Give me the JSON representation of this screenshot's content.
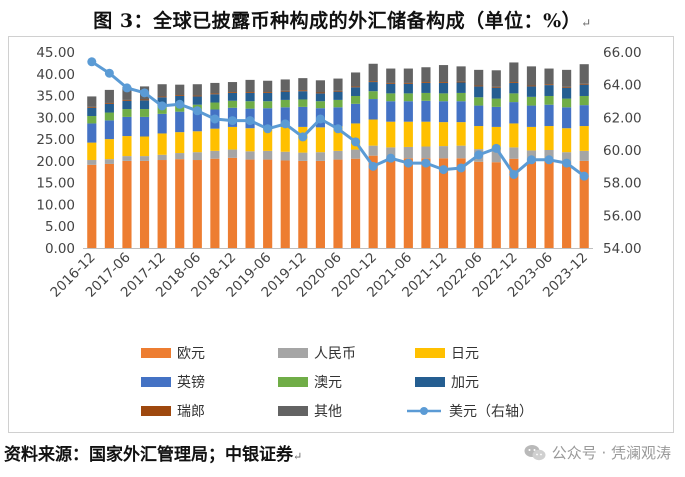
{
  "title": "图 3：全球已披露币种构成的外汇储备构成（单位：%）",
  "source": "资料来源：国家外汇管理局；中银证券",
  "watermark": "公众号 · 凭澜观涛",
  "colors": {
    "eur": "#ED7D31",
    "rmb": "#A5A5A5",
    "jpy": "#FFC000",
    "gbp": "#4472C4",
    "aud": "#70AD47",
    "cad": "#255E91",
    "chf": "#9E480E",
    "other": "#636363",
    "usd": "#5B9BD5"
  },
  "chart_data": {
    "type": "bar",
    "stacked": true,
    "categories": [
      "2016-12",
      "2017-03",
      "2017-06",
      "2017-09",
      "2017-12",
      "2018-03",
      "2018-06",
      "2018-09",
      "2018-12",
      "2019-03",
      "2019-06",
      "2019-09",
      "2019-12",
      "2020-03",
      "2020-06",
      "2020-09",
      "2020-12",
      "2021-03",
      "2021-06",
      "2021-09",
      "2021-12",
      "2022-03",
      "2022-06",
      "2022-09",
      "2022-12",
      "2023-03",
      "2023-06",
      "2023-09",
      "2023-12"
    ],
    "x_tick_labels": [
      "2016-12",
      "2017-06",
      "2017-12",
      "2018-06",
      "2018-12",
      "2019-06",
      "2019-12",
      "2020-06",
      "2020-12",
      "2021-06",
      "2021-12",
      "2022-06",
      "2022-12",
      "2023-06",
      "2023-12"
    ],
    "y_left": {
      "min": 0,
      "max": 45,
      "step": 5,
      "ticks": [
        "0.00",
        "5.00",
        "10.00",
        "15.00",
        "20.00",
        "25.00",
        "30.00",
        "35.00",
        "40.00",
        "45.00"
      ]
    },
    "y_right": {
      "min": 54,
      "max": 66,
      "step": 2,
      "ticks": [
        "54.00",
        "56.00",
        "58.00",
        "60.00",
        "62.00",
        "64.00",
        "66.00"
      ]
    },
    "series": [
      {
        "name": "欧元",
        "key": "eur",
        "axis": "left",
        "values": [
          19.1,
          19.3,
          20.0,
          20.0,
          20.2,
          20.4,
          20.2,
          20.5,
          20.7,
          20.3,
          20.3,
          20.1,
          20.0,
          20.0,
          20.3,
          20.5,
          21.2,
          20.7,
          20.6,
          20.6,
          20.6,
          20.6,
          19.8,
          19.7,
          20.5,
          19.8,
          20.0,
          19.6,
          20.0
        ]
      },
      {
        "name": "人民币",
        "key": "rmb",
        "axis": "left",
        "values": [
          1.1,
          1.1,
          1.1,
          1.1,
          1.2,
          1.4,
          1.8,
          1.8,
          1.9,
          1.9,
          2.0,
          2.0,
          1.9,
          2.0,
          2.0,
          2.1,
          2.3,
          2.4,
          2.6,
          2.7,
          2.8,
          2.9,
          2.9,
          2.8,
          2.6,
          2.6,
          2.5,
          2.4,
          2.3
        ]
      },
      {
        "name": "日元",
        "key": "jpy",
        "axis": "left",
        "values": [
          4.0,
          4.6,
          4.6,
          4.5,
          4.9,
          4.8,
          4.8,
          5.1,
          5.2,
          5.3,
          5.4,
          5.7,
          5.9,
          5.7,
          5.6,
          6.0,
          6.0,
          5.9,
          5.8,
          5.7,
          5.5,
          5.4,
          5.3,
          5.3,
          5.5,
          5.4,
          5.5,
          5.5,
          5.7
        ]
      },
      {
        "name": "英镑",
        "key": "gbp",
        "axis": "left",
        "values": [
          4.4,
          4.3,
          4.4,
          4.5,
          4.5,
          4.7,
          4.5,
          4.4,
          4.4,
          4.5,
          4.4,
          4.5,
          4.6,
          4.4,
          4.4,
          4.5,
          4.7,
          4.7,
          4.7,
          4.8,
          4.8,
          4.8,
          4.7,
          4.6,
          4.9,
          4.9,
          4.9,
          4.8,
          4.8
        ]
      },
      {
        "name": "澳元",
        "key": "aud",
        "axis": "left",
        "values": [
          1.7,
          1.8,
          1.8,
          1.8,
          1.8,
          1.7,
          1.6,
          1.6,
          1.6,
          1.7,
          1.6,
          1.7,
          1.7,
          1.6,
          1.7,
          1.8,
          1.8,
          1.8,
          1.8,
          1.8,
          1.8,
          1.9,
          1.9,
          1.9,
          2.0,
          2.0,
          2.0,
          2.0,
          2.1
        ]
      },
      {
        "name": "加元",
        "key": "cad",
        "axis": "left",
        "values": [
          1.9,
          2.0,
          1.9,
          2.0,
          2.0,
          1.9,
          1.9,
          1.9,
          1.8,
          1.9,
          1.9,
          1.9,
          1.9,
          1.8,
          1.9,
          2.0,
          2.1,
          2.2,
          2.2,
          2.3,
          2.4,
          2.4,
          2.5,
          2.5,
          2.4,
          2.4,
          2.5,
          2.5,
          2.6
        ]
      },
      {
        "name": "瑞郎",
        "key": "chf",
        "axis": "left",
        "values": [
          0.2,
          0.2,
          0.2,
          0.2,
          0.2,
          0.2,
          0.2,
          0.2,
          0.2,
          0.2,
          0.2,
          0.2,
          0.2,
          0.2,
          0.2,
          0.2,
          0.2,
          0.2,
          0.2,
          0.2,
          0.2,
          0.2,
          0.2,
          0.2,
          0.2,
          0.2,
          0.2,
          0.2,
          0.2
        ]
      },
      {
        "name": "其他",
        "key": "other",
        "axis": "left",
        "values": [
          2.4,
          3.0,
          3.0,
          3.0,
          2.8,
          2.4,
          2.6,
          2.4,
          2.3,
          2.8,
          2.6,
          2.6,
          2.8,
          2.8,
          2.8,
          3.2,
          4.0,
          3.3,
          3.3,
          3.4,
          3.9,
          3.5,
          3.6,
          3.8,
          4.5,
          4.4,
          3.6,
          3.9,
          4.5
        ]
      },
      {
        "name": "美元（右轴）",
        "key": "usd",
        "axis": "right",
        "type": "line",
        "values": [
          65.4,
          64.7,
          63.8,
          63.5,
          62.7,
          62.8,
          62.4,
          61.9,
          61.8,
          61.8,
          61.3,
          61.6,
          60.8,
          61.9,
          61.3,
          60.5,
          59.0,
          59.5,
          59.2,
          59.2,
          58.8,
          58.9,
          59.7,
          60.1,
          58.5,
          59.4,
          59.4,
          59.2,
          58.4
        ]
      }
    ],
    "legend_position": "bottom",
    "grid": false
  }
}
